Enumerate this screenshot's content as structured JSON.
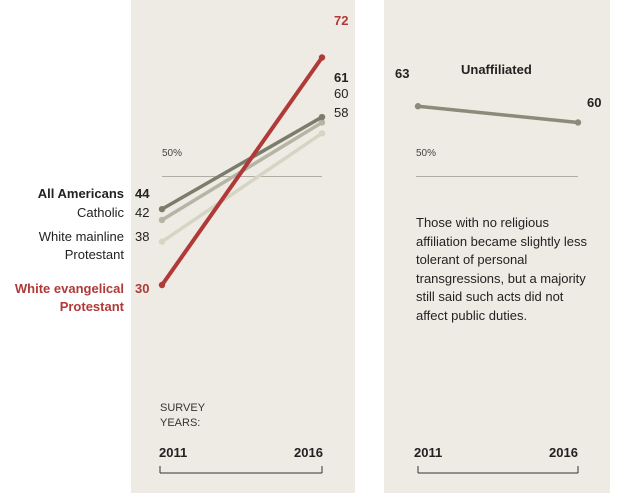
{
  "chart_data": [
    {
      "type": "line",
      "x": [
        "2011",
        "2016"
      ],
      "ylim": [
        0,
        100
      ],
      "reference_line": {
        "value": 50,
        "label": "50%"
      },
      "axis_caption": "SURVEY YEARS:",
      "series": [
        {
          "name": "All Americans",
          "values": [
            44,
            61
          ],
          "color": "#7b7c6c"
        },
        {
          "name": "Catholic",
          "values": [
            42,
            60
          ],
          "color": "#b5b5a5"
        },
        {
          "name": "White mainline Protestant",
          "values": [
            38,
            58
          ],
          "color": "#d6d5c4"
        },
        {
          "name": "White evangelical Protestant",
          "values": [
            30,
            72
          ],
          "color": "#b03a38"
        }
      ]
    },
    {
      "type": "line",
      "x": [
        "2011",
        "2016"
      ],
      "ylim": [
        0,
        100
      ],
      "reference_line": {
        "value": 50,
        "label": "50%"
      },
      "annotation": "Those with no religious affiliation became slightly less tolerant of personal transgressions, but a majority still said such acts did not affect public duties.",
      "series": [
        {
          "name": "Unaffiliated",
          "values": [
            63,
            60
          ],
          "color": "#8a8b7b"
        }
      ]
    }
  ],
  "left_labels": {
    "all_americans": {
      "name": "All Americans",
      "v2011": "44",
      "v2016": "61"
    },
    "catholic": {
      "name": "Catholic",
      "v2011": "42",
      "v2016": "60"
    },
    "mainline": {
      "name_line1": "White mainline",
      "name_line2": "Protestant",
      "v2011": "38",
      "v2016": "58"
    },
    "evangelical": {
      "name_line1": "White evangelical",
      "name_line2": "Protestant",
      "v2011": "30",
      "v2016": "72"
    }
  },
  "right_labels": {
    "series": "Unaffiliated",
    "v2011": "63",
    "v2016": "60"
  },
  "axis": {
    "ref_label": "50%",
    "caption_line1": "SURVEY",
    "caption_line2": "YEARS:",
    "year_start": "2011",
    "year_end": "2016"
  }
}
